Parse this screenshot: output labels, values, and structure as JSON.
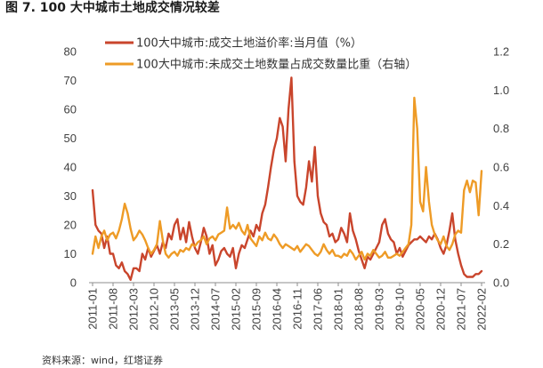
{
  "chart_data": {
    "type": "line",
    "title": "图 7. 100 大中城市土地成交情况较差",
    "x": [
      "2011-01",
      "2011-02",
      "2011-03",
      "2011-04",
      "2011-05",
      "2011-06",
      "2011-07",
      "2011-08",
      "2011-09",
      "2011-10",
      "2011-11",
      "2011-12",
      "2012-01",
      "2012-02",
      "2012-03",
      "2012-04",
      "2012-05",
      "2012-06",
      "2012-07",
      "2012-08",
      "2012-09",
      "2012-10",
      "2012-11",
      "2012-12",
      "2013-01",
      "2013-02",
      "2013-03",
      "2013-04",
      "2013-05",
      "2013-06",
      "2013-07",
      "2013-08",
      "2013-09",
      "2013-10",
      "2013-11",
      "2013-12",
      "2014-01",
      "2014-02",
      "2014-03",
      "2014-04",
      "2014-05",
      "2014-06",
      "2014-07",
      "2014-08",
      "2014-09",
      "2014-10",
      "2014-11",
      "2014-12",
      "2015-01",
      "2015-02",
      "2015-03",
      "2015-04",
      "2015-05",
      "2015-06",
      "2015-07",
      "2015-08",
      "2015-09",
      "2015-10",
      "2015-11",
      "2015-12",
      "2016-01",
      "2016-02",
      "2016-03",
      "2016-04",
      "2016-05",
      "2016-06",
      "2016-07",
      "2016-08",
      "2016-09",
      "2016-10",
      "2016-11",
      "2016-12",
      "2017-01",
      "2017-02",
      "2017-03",
      "2017-04",
      "2017-05",
      "2017-06",
      "2017-07",
      "2017-08",
      "2017-09",
      "2017-10",
      "2017-11",
      "2017-12",
      "2018-01",
      "2018-02",
      "2018-03",
      "2018-04",
      "2018-05",
      "2018-06",
      "2018-07",
      "2018-08",
      "2018-09",
      "2018-10",
      "2018-11",
      "2018-12",
      "2019-01",
      "2019-02",
      "2019-03",
      "2019-04",
      "2019-05",
      "2019-06",
      "2019-07",
      "2019-08",
      "2019-09",
      "2019-10",
      "2019-11",
      "2019-12",
      "2020-01",
      "2020-02",
      "2020-03",
      "2020-04",
      "2020-05",
      "2020-06",
      "2020-07",
      "2020-08",
      "2020-09",
      "2020-10",
      "2020-11",
      "2020-12",
      "2021-01",
      "2021-02",
      "2021-03",
      "2021-04",
      "2021-05",
      "2021-06",
      "2021-07",
      "2021-08",
      "2021-09",
      "2021-10",
      "2021-11",
      "2021-12",
      "2022-01",
      "2022-02"
    ],
    "xticks": [
      "2011-01",
      "2011-08",
      "2012-03",
      "2012-10",
      "2013-05",
      "2013-12",
      "2014-07",
      "2015-02",
      "2015-09",
      "2016-04",
      "2016-11",
      "2017-06",
      "2018-01",
      "2018-08",
      "2019-03",
      "2019-10",
      "2020-05",
      "2020-12",
      "2021-07",
      "2022-02"
    ],
    "series": [
      {
        "name": "100大中城市:成交土地溢价率:当月值（%）",
        "axis": "left",
        "color": "#C9452C",
        "values": [
          32,
          20,
          18,
          17,
          12,
          16,
          10,
          10,
          6,
          5,
          7,
          4,
          3,
          1,
          5,
          5,
          4,
          10,
          8,
          12,
          9,
          11,
          13,
          10,
          14,
          12,
          17,
          15,
          20,
          22,
          15,
          19,
          14,
          21,
          16,
          12,
          10,
          14,
          19,
          16,
          10,
          13,
          6,
          8,
          11,
          12,
          10,
          9,
          12,
          5,
          10,
          13,
          12,
          15,
          18,
          16,
          20,
          18,
          24,
          27,
          33,
          40,
          46,
          50,
          57,
          54,
          42,
          60,
          71,
          42,
          30,
          28,
          27,
          33,
          42,
          35,
          47,
          30,
          24,
          21,
          20,
          16,
          17,
          14,
          15,
          19,
          17,
          14,
          24,
          18,
          15,
          11,
          8,
          5,
          9,
          8,
          10,
          12,
          14,
          20,
          22,
          17,
          15,
          14,
          10,
          12,
          9,
          11,
          13,
          14,
          15,
          15,
          16,
          15,
          14,
          16,
          15,
          17,
          15,
          12,
          10,
          13,
          18,
          24,
          15,
          10,
          6,
          3,
          2,
          2,
          2,
          3,
          3,
          4
        ]
      },
      {
        "name": "100大中城市:未成交土地数量占成交数量比重（右轴）",
        "axis": "right",
        "color": "#EE9B26",
        "values": [
          0.15,
          0.24,
          0.18,
          0.24,
          0.27,
          0.22,
          0.25,
          0.26,
          0.23,
          0.27,
          0.33,
          0.41,
          0.36,
          0.28,
          0.22,
          0.24,
          0.27,
          0.25,
          0.22,
          0.18,
          0.15,
          0.17,
          0.2,
          0.32,
          0.22,
          0.15,
          0.13,
          0.15,
          0.16,
          0.14,
          0.17,
          0.16,
          0.18,
          0.17,
          0.2,
          0.19,
          0.21,
          0.22,
          0.24,
          0.2,
          0.23,
          0.24,
          0.22,
          0.25,
          0.26,
          0.27,
          0.39,
          0.28,
          0.3,
          0.28,
          0.31,
          0.27,
          0.25,
          0.3,
          0.23,
          0.21,
          0.19,
          0.24,
          0.22,
          0.26,
          0.23,
          0.22,
          0.25,
          0.23,
          0.2,
          0.18,
          0.2,
          0.19,
          0.18,
          0.17,
          0.19,
          0.16,
          0.18,
          0.2,
          0.19,
          0.17,
          0.15,
          0.14,
          0.16,
          0.2,
          0.17,
          0.15,
          0.17,
          0.14,
          0.14,
          0.13,
          0.15,
          0.14,
          0.17,
          0.15,
          0.12,
          0.14,
          0.16,
          0.12,
          0.15,
          0.14,
          0.17,
          0.15,
          0.13,
          0.14,
          0.16,
          0.13,
          0.13,
          0.14,
          0.15,
          0.14,
          0.16,
          0.18,
          0.2,
          0.3,
          0.96,
          0.8,
          0.42,
          0.37,
          0.6,
          0.42,
          0.3,
          0.25,
          0.22,
          0.2,
          0.24,
          0.19,
          0.17,
          0.2,
          0.25,
          0.27,
          0.26,
          0.48,
          0.53,
          0.47,
          0.53,
          0.52,
          0.35,
          0.58
        ]
      }
    ],
    "y_left": {
      "lim": [
        0,
        80
      ],
      "ticks": [
        0,
        10,
        20,
        30,
        40,
        50,
        60,
        70,
        80
      ]
    },
    "y_right": {
      "lim": [
        0,
        1.2
      ],
      "ticks": [
        "0.0",
        "0.2",
        "0.4",
        "0.6",
        "0.8",
        "1.0",
        "1.2"
      ]
    },
    "grid": false,
    "legend": "top-left"
  },
  "source": "资料来源：wind，红塔证券"
}
